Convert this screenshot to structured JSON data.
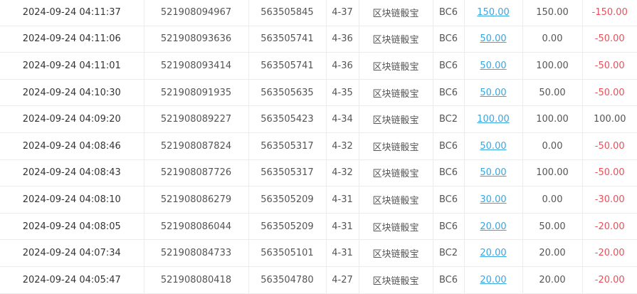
{
  "colors": {
    "link": "#3aa5e0",
    "negative": "#e8505b",
    "text": "#555555"
  },
  "rows": [
    {
      "time": "2024-09-24 04:11:37",
      "order_id": "521908094967",
      "issue": "563505845",
      "round": "4-37",
      "game": "区块链骰宝",
      "play": "BC6",
      "bet": "150.00",
      "valid": "150.00",
      "profit": "-150.00"
    },
    {
      "time": "2024-09-24 04:11:06",
      "order_id": "521908093636",
      "issue": "563505741",
      "round": "4-36",
      "game": "区块链骰宝",
      "play": "BC6",
      "bet": "50.00",
      "valid": "0.00",
      "profit": "-50.00"
    },
    {
      "time": "2024-09-24 04:11:01",
      "order_id": "521908093414",
      "issue": "563505741",
      "round": "4-36",
      "game": "区块链骰宝",
      "play": "BC6",
      "bet": "50.00",
      "valid": "100.00",
      "profit": "-50.00"
    },
    {
      "time": "2024-09-24 04:10:30",
      "order_id": "521908091935",
      "issue": "563505635",
      "round": "4-35",
      "game": "区块链骰宝",
      "play": "BC6",
      "bet": "50.00",
      "valid": "50.00",
      "profit": "-50.00"
    },
    {
      "time": "2024-09-24 04:09:20",
      "order_id": "521908089227",
      "issue": "563505423",
      "round": "4-34",
      "game": "区块链骰宝",
      "play": "BC2",
      "bet": "100.00",
      "valid": "100.00",
      "profit": "100.00"
    },
    {
      "time": "2024-09-24 04:08:46",
      "order_id": "521908087824",
      "issue": "563505317",
      "round": "4-32",
      "game": "区块链骰宝",
      "play": "BC6",
      "bet": "50.00",
      "valid": "0.00",
      "profit": "-50.00"
    },
    {
      "time": "2024-09-24 04:08:43",
      "order_id": "521908087726",
      "issue": "563505317",
      "round": "4-32",
      "game": "区块链骰宝",
      "play": "BC6",
      "bet": "50.00",
      "valid": "100.00",
      "profit": "-50.00"
    },
    {
      "time": "2024-09-24 04:08:10",
      "order_id": "521908086279",
      "issue": "563505209",
      "round": "4-31",
      "game": "区块链骰宝",
      "play": "BC6",
      "bet": "30.00",
      "valid": "0.00",
      "profit": "-30.00"
    },
    {
      "time": "2024-09-24 04:08:05",
      "order_id": "521908086044",
      "issue": "563505209",
      "round": "4-31",
      "game": "区块链骰宝",
      "play": "BC6",
      "bet": "20.00",
      "valid": "50.00",
      "profit": "-20.00"
    },
    {
      "time": "2024-09-24 04:07:34",
      "order_id": "521908084733",
      "issue": "563505101",
      "round": "4-31",
      "game": "区块链骰宝",
      "play": "BC2",
      "bet": "20.00",
      "valid": "20.00",
      "profit": "-20.00"
    },
    {
      "time": "2024-09-24 04:05:47",
      "order_id": "521908080418",
      "issue": "563504780",
      "round": "4-27",
      "game": "区块链骰宝",
      "play": "BC6",
      "bet": "20.00",
      "valid": "20.00",
      "profit": "-20.00"
    }
  ]
}
